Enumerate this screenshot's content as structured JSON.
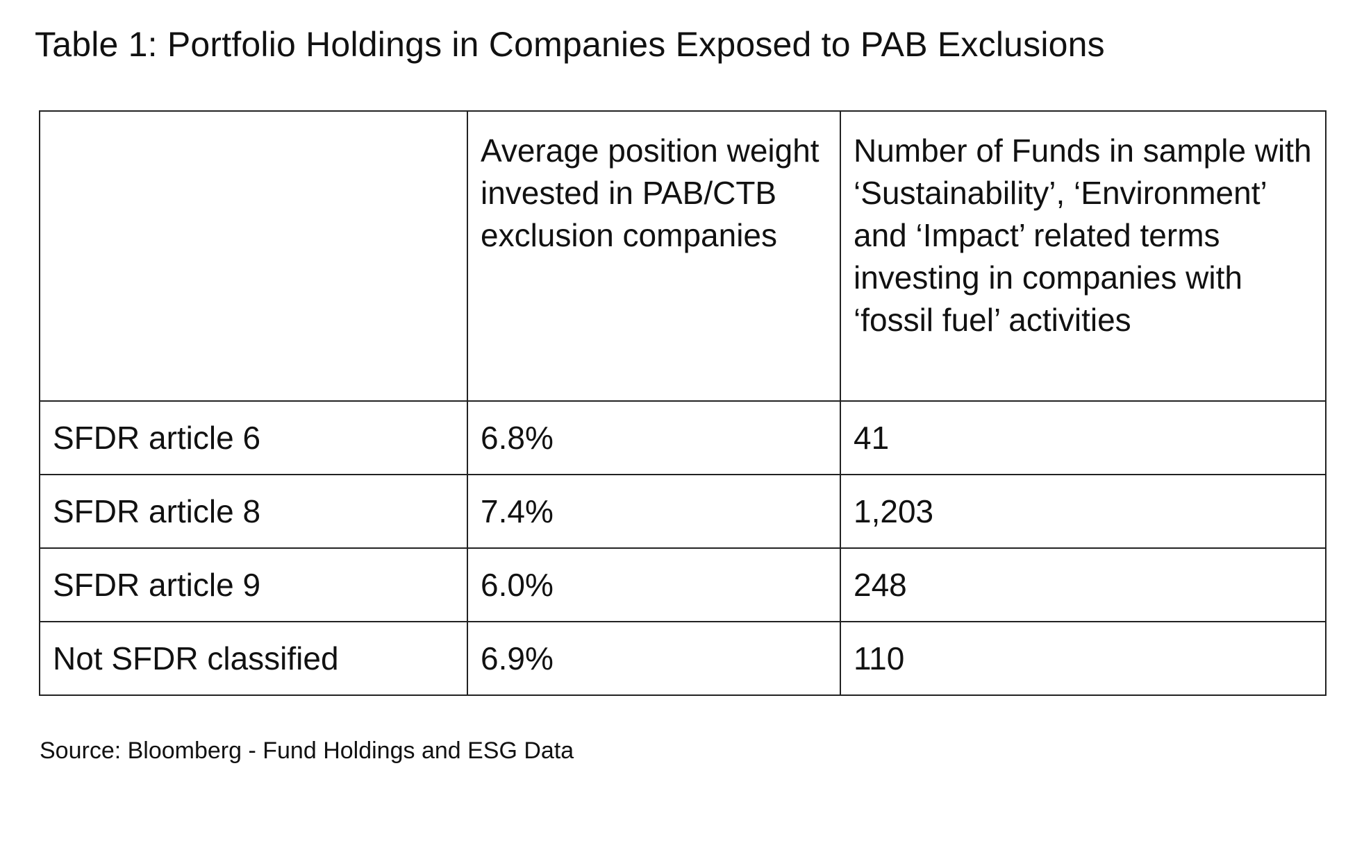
{
  "title": "Table 1: Portfolio Holdings in Companies Exposed to PAB Exclusions",
  "table": {
    "headers": [
      "",
      "Average position weight invested in PAB/CTB exclusion companies",
      "Number of Funds in sample with ‘Sustainability’, ‘Environment’ and ‘Impact’ related terms investing in companies with ‘fossil fuel’ activities"
    ],
    "rows": [
      [
        "SFDR article 6",
        "6.8%",
        "41"
      ],
      [
        "SFDR article 8",
        "7.4%",
        "1,203"
      ],
      [
        "SFDR article 9",
        "6.0%",
        "248"
      ],
      [
        "Not SFDR classified",
        "6.9%",
        "110"
      ]
    ]
  },
  "source": "Source: Bloomberg - Fund Holdings and ESG Data"
}
